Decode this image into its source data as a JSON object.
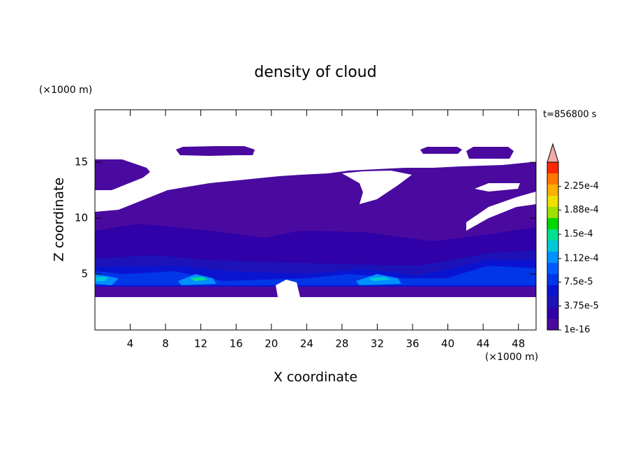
{
  "chart_data": {
    "type": "contour",
    "title": "density of cloud",
    "xlabel": "X coordinate",
    "ylabel": "Z coordinate",
    "xunit": "(×1000 m)",
    "yunit": "(×1000 m)",
    "annotation": "t=856800 s",
    "xlim": [
      0,
      50
    ],
    "xticks": [
      4,
      8,
      12,
      16,
      20,
      24,
      28,
      32,
      36,
      40,
      44,
      48
    ],
    "ylim": [
      0,
      19.7
    ],
    "yticks": [
      5,
      10,
      15
    ],
    "colorbar": {
      "colors": [
        "#4a0aa0",
        "#3000a8",
        "#1c12b8",
        "#0a14d0",
        "#0036e8",
        "#005aff",
        "#0090ff",
        "#00c8d8",
        "#00e090",
        "#00d800",
        "#a0e000",
        "#f0e000",
        "#ffb000",
        "#ff7800",
        "#ff2800"
      ],
      "extend_color": "#f4a8a8",
      "clim": [
        0,
        0.000263
      ],
      "ticks": [
        {
          "value": 1e-16,
          "label": "1e-16"
        },
        {
          "value": 3.75e-05,
          "label": "3.75e-5"
        },
        {
          "value": 7.5e-05,
          "label": "7.5e-5"
        },
        {
          "value": 0.000112,
          "label": "1.12e-4"
        },
        {
          "value": 0.00015,
          "label": "1.5e-4"
        },
        {
          "value": 0.000188,
          "label": "1.88e-4"
        },
        {
          "value": 0.000225,
          "label": "2.25e-4"
        }
      ]
    }
  }
}
